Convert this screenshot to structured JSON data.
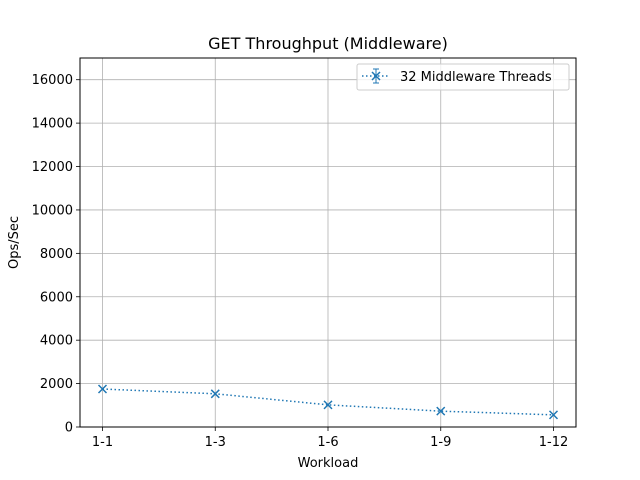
{
  "chart_data": {
    "type": "line",
    "title": "GET Throughput (Middleware)",
    "xlabel": "Workload",
    "ylabel": "Ops/Sec",
    "categories": [
      "1-1",
      "1-3",
      "1-6",
      "1-9",
      "1-12"
    ],
    "ylim": [
      0,
      17000
    ],
    "yticks": [
      0,
      2000,
      4000,
      6000,
      8000,
      10000,
      12000,
      14000,
      16000
    ],
    "grid": true,
    "legend_position": "top-right",
    "series": [
      {
        "name": "32 Middleware Threads",
        "values": [
          1750,
          1530,
          1020,
          730,
          560
        ],
        "color": "#1f77b4",
        "line_style": "dotted",
        "marker": "x",
        "error_bars": true
      }
    ]
  }
}
